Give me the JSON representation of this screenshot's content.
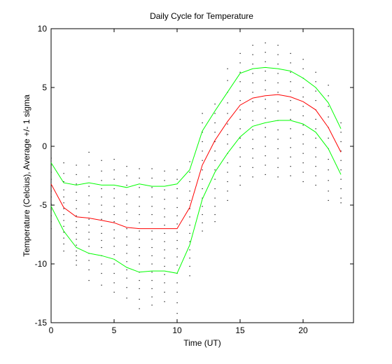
{
  "chart_data": {
    "type": "line",
    "title": "Daily Cycle for Temperature",
    "xlabel": "Time (UT)",
    "ylabel": "Temperature (Celcius), Average +/- 1 sigma",
    "xlim": [
      0,
      24
    ],
    "ylim": [
      -15,
      10
    ],
    "xticks": [
      0,
      5,
      10,
      15,
      20
    ],
    "yticks": [
      -15,
      -10,
      -5,
      0,
      5,
      10
    ],
    "grid": false,
    "legend": "none",
    "x": [
      0,
      1,
      2,
      3,
      4,
      5,
      6,
      7,
      8,
      9,
      10,
      11,
      12,
      13,
      14,
      15,
      16,
      17,
      18,
      19,
      20,
      21,
      22,
      23
    ],
    "series": [
      {
        "color": "#ff0000",
        "values": [
          -3.2,
          -5.2,
          -6.0,
          -6.1,
          -6.3,
          -6.5,
          -6.9,
          -7.0,
          -7.0,
          -7.0,
          -7.0,
          -5.2,
          -1.6,
          0.5,
          2.1,
          3.5,
          4.1,
          4.3,
          4.4,
          4.2,
          3.8,
          3.1,
          1.6,
          -0.5
        ]
      },
      {
        "color": "#00ff00",
        "values": [
          -1.4,
          -3.1,
          -3.3,
          -3.1,
          -3.3,
          -3.3,
          -3.5,
          -3.2,
          -3.4,
          -3.4,
          -3.2,
          -2.0,
          1.3,
          3.0,
          4.6,
          6.2,
          6.6,
          6.7,
          6.6,
          6.4,
          5.8,
          5.0,
          3.7,
          1.5
        ]
      },
      {
        "color": "#00ff00",
        "values": [
          -5.1,
          -7.2,
          -8.6,
          -9.1,
          -9.3,
          -9.6,
          -10.3,
          -10.7,
          -10.6,
          -10.6,
          -10.8,
          -8.4,
          -4.5,
          -2.2,
          -0.6,
          0.8,
          1.7,
          2.0,
          2.2,
          2.2,
          1.9,
          1.2,
          -0.2,
          -2.4
        ]
      }
    ],
    "scatter": {
      "color": "#000000",
      "x": [
        0,
        0,
        0,
        0,
        0,
        0,
        0,
        0,
        0,
        0,
        0,
        0,
        1,
        1,
        1,
        1,
        1,
        1,
        1,
        1,
        1,
        1,
        1,
        1,
        1,
        1,
        2,
        2,
        2,
        2,
        2,
        2,
        2,
        2,
        2,
        2,
        2,
        2,
        2,
        2,
        2,
        2,
        3,
        3,
        3,
        3,
        3,
        3,
        3,
        3,
        3,
        3,
        3,
        3,
        3,
        3,
        3,
        3,
        4,
        4,
        4,
        4,
        4,
        4,
        4,
        4,
        4,
        4,
        4,
        4,
        4,
        4,
        4,
        4,
        5,
        5,
        5,
        5,
        5,
        5,
        5,
        5,
        5,
        5,
        5,
        5,
        5,
        5,
        5,
        5,
        6,
        6,
        6,
        6,
        6,
        6,
        6,
        6,
        6,
        6,
        6,
        6,
        6,
        6,
        6,
        6,
        7,
        7,
        7,
        7,
        7,
        7,
        7,
        7,
        7,
        7,
        7,
        7,
        7,
        7,
        7,
        7,
        7,
        8,
        8,
        8,
        8,
        8,
        8,
        8,
        8,
        8,
        8,
        8,
        8,
        8,
        8,
        8,
        8,
        8,
        9,
        9,
        9,
        9,
        9,
        9,
        9,
        9,
        9,
        9,
        9,
        9,
        9,
        9,
        9,
        9,
        10,
        10,
        10,
        10,
        10,
        10,
        10,
        10,
        10,
        10,
        10,
        10,
        10,
        10,
        10,
        10,
        10,
        11,
        11,
        11,
        11,
        11,
        11,
        11,
        11,
        11,
        11,
        11,
        11,
        11,
        11,
        12,
        12,
        12,
        12,
        12,
        12,
        12,
        12,
        12,
        12,
        12,
        12,
        12,
        12,
        13,
        13,
        13,
        13,
        13,
        13,
        13,
        13,
        13,
        13,
        13,
        13,
        13,
        13,
        14,
        14,
        14,
        14,
        14,
        14,
        14,
        14,
        14,
        14,
        14,
        14,
        14,
        14,
        15,
        15,
        15,
        15,
        15,
        15,
        15,
        15,
        15,
        15,
        15,
        15,
        15,
        15,
        15,
        16,
        16,
        16,
        16,
        16,
        16,
        16,
        16,
        16,
        16,
        16,
        16,
        16,
        16,
        16,
        17,
        17,
        17,
        17,
        17,
        17,
        17,
        17,
        17,
        17,
        17,
        17,
        17,
        17,
        17,
        18,
        18,
        18,
        18,
        18,
        18,
        18,
        18,
        18,
        18,
        18,
        18,
        18,
        18,
        18,
        19,
        19,
        19,
        19,
        19,
        19,
        19,
        19,
        19,
        19,
        19,
        19,
        19,
        19,
        20,
        20,
        20,
        20,
        20,
        20,
        20,
        20,
        20,
        20,
        20,
        20,
        20,
        20,
        21,
        21,
        21,
        21,
        21,
        21,
        21,
        21,
        21,
        21,
        21,
        21,
        21,
        22,
        22,
        22,
        22,
        22,
        22,
        22,
        22,
        22,
        22,
        22,
        22,
        23,
        23,
        23,
        23,
        23,
        23,
        23,
        23,
        23,
        23
      ],
      "y": [
        -1.0,
        -1.6,
        -2.2,
        -2.8,
        -3.3,
        -3.8,
        -4.3,
        -4.9,
        -5.4,
        -5.9,
        -6.4,
        -7.0,
        -1.4,
        -2.3,
        -3.0,
        -3.7,
        -4.3,
        -4.8,
        -5.3,
        -5.8,
        -6.3,
        -6.8,
        -7.3,
        -7.8,
        -8.3,
        -8.9,
        -1.6,
        -2.4,
        -3.2,
        -3.9,
        -4.6,
        -5.3,
        -5.9,
        -6.4,
        -6.9,
        -7.4,
        -7.9,
        -8.4,
        -8.9,
        -9.3,
        -9.7,
        -10.1,
        -0.5,
        -1.6,
        -2.6,
        -3.4,
        -4.2,
        -4.9,
        -5.6,
        -6.2,
        -6.7,
        -7.3,
        -7.9,
        -8.5,
        -9.1,
        -9.7,
        -10.5,
        -11.4,
        -1.2,
        -2.1,
        -2.9,
        -3.6,
        -4.3,
        -5.0,
        -5.6,
        -6.2,
        -6.8,
        -7.4,
        -8.0,
        -8.6,
        -9.3,
        -10.0,
        -10.8,
        -11.8,
        -1.1,
        -2.0,
        -2.8,
        -3.6,
        -4.4,
        -5.1,
        -5.8,
        -6.4,
        -7.1,
        -7.8,
        -8.5,
        -9.2,
        -10.0,
        -10.8,
        -11.6,
        -12.4,
        -1.7,
        -2.5,
        -3.3,
        -4.1,
        -4.9,
        -5.6,
        -6.3,
        -7.0,
        -7.7,
        -8.4,
        -9.1,
        -9.8,
        -10.5,
        -11.2,
        -12.0,
        -12.9,
        -1.9,
        -2.7,
        -3.5,
        -4.3,
        -5.1,
        -5.8,
        -6.5,
        -7.2,
        -7.9,
        -8.6,
        -9.3,
        -10.0,
        -10.7,
        -11.4,
        -12.1,
        -13.0,
        -13.8,
        -1.9,
        -2.7,
        -3.5,
        -4.3,
        -5.1,
        -5.8,
        -6.5,
        -7.2,
        -7.9,
        -8.6,
        -9.3,
        -10.0,
        -10.7,
        -11.4,
        -12.1,
        -12.8,
        -13.5,
        -2.1,
        -2.9,
        -3.7,
        -4.5,
        -5.3,
        -6.0,
        -6.7,
        -7.4,
        -8.1,
        -8.8,
        -9.5,
        -10.2,
        -10.9,
        -11.6,
        -12.4,
        -13.2,
        -2.0,
        -2.8,
        -3.6,
        -4.4,
        -5.2,
        -5.9,
        -6.6,
        -7.3,
        -8.0,
        -8.7,
        -9.4,
        -10.1,
        -10.8,
        -11.6,
        -12.4,
        -13.3,
        -14.2,
        -1.3,
        -2.2,
        -3.0,
        -3.8,
        -4.6,
        -5.3,
        -6.0,
        -6.7,
        -7.4,
        -8.1,
        -8.8,
        -9.5,
        -10.2,
        -11.0,
        2.8,
        2.0,
        1.2,
        0.4,
        -0.4,
        -1.2,
        -2.0,
        -2.8,
        -3.6,
        -4.4,
        -5.1,
        -5.8,
        -6.5,
        -7.2,
        3.6,
        2.8,
        2.0,
        1.2,
        0.4,
        -0.4,
        -1.2,
        -2.0,
        -2.8,
        -3.6,
        -4.4,
        -5.1,
        -5.8,
        -6.4,
        6.6,
        5.6,
        4.6,
        3.7,
        2.8,
        1.9,
        1.0,
        0.2,
        -0.6,
        -1.4,
        -2.2,
        -3.0,
        -3.8,
        -4.6,
        7.9,
        7.1,
        6.3,
        5.5,
        4.7,
        3.9,
        3.1,
        2.3,
        1.5,
        0.7,
        -0.1,
        -0.9,
        -1.7,
        -2.5,
        -3.3,
        8.6,
        7.8,
        7.0,
        6.2,
        5.4,
        4.6,
        3.8,
        3.0,
        2.2,
        1.4,
        0.6,
        -0.2,
        -1.0,
        -1.8,
        -2.6,
        8.8,
        8.0,
        7.2,
        6.4,
        5.6,
        4.8,
        4.0,
        3.2,
        2.4,
        1.6,
        0.8,
        0.0,
        -0.8,
        -1.6,
        -2.4,
        8.6,
        7.8,
        7.0,
        6.2,
        5.4,
        4.6,
        3.8,
        3.0,
        2.2,
        1.4,
        0.6,
        -0.2,
        -1.0,
        -1.8,
        -2.6,
        7.9,
        7.1,
        6.3,
        5.5,
        4.7,
        3.9,
        3.1,
        2.3,
        1.5,
        0.7,
        -0.1,
        -0.9,
        -1.7,
        -2.5,
        7.4,
        6.6,
        5.8,
        5.0,
        4.2,
        3.4,
        2.6,
        1.8,
        1.0,
        0.2,
        -0.6,
        -1.4,
        -2.2,
        -3.0,
        6.3,
        5.5,
        4.7,
        3.9,
        3.1,
        2.3,
        1.5,
        0.7,
        -0.1,
        -0.9,
        -1.7,
        -2.5,
        -3.3,
        5.2,
        4.3,
        3.4,
        2.5,
        1.6,
        0.7,
        -0.2,
        -1.1,
        -2.0,
        -2.9,
        -3.8,
        -4.6,
        2.0,
        1.2,
        0.4,
        -0.4,
        -1.2,
        -2.0,
        -2.8,
        -3.6,
        -4.4,
        -4.8
      ]
    }
  }
}
